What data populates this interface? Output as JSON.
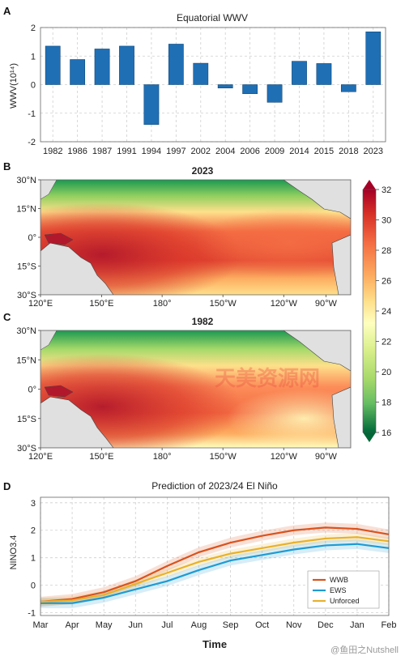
{
  "panels": {
    "a": {
      "letter": "A",
      "title": "Equatorial WWV",
      "ylabel": "WWV(10¹⁴)"
    },
    "b": {
      "letter": "B",
      "title": "2023"
    },
    "c": {
      "letter": "C",
      "title": "1982"
    },
    "d": {
      "letter": "D",
      "title": "Prediction of 2023/24 El Niño",
      "ylabel": "NINO3.4",
      "xlabel": "Time"
    }
  },
  "map_axes": {
    "lat_ticks": [
      "30°N",
      "15°N",
      "0°",
      "15°S",
      "30°S"
    ],
    "lon_ticks": [
      "120°E",
      "150°E",
      "180°",
      "150°W",
      "120°W",
      "90°W"
    ]
  },
  "colorbar": {
    "ticks": [
      "32",
      "30",
      "28",
      "26",
      "24",
      "22",
      "20",
      "18",
      "16"
    ],
    "colors": [
      "#a50026",
      "#d73027",
      "#f46d43",
      "#fdae61",
      "#fee08b",
      "#ffffbf",
      "#d9ef8b",
      "#a6d96a",
      "#66bd63",
      "#1a9850",
      "#006837"
    ]
  },
  "watermark": {
    "text": "天美资源网",
    "footer": "@鱼田之Nutshell"
  },
  "chart_data": [
    {
      "id": "panel-a",
      "type": "bar",
      "title": "Equatorial WWV",
      "ylabel": "WWV(10¹⁴)",
      "categories": [
        "1982",
        "1986",
        "1987",
        "1991",
        "1994",
        "1997",
        "2002",
        "2004",
        "2006",
        "2009",
        "2014",
        "2015",
        "2018",
        "2023"
      ],
      "values": [
        1.35,
        0.88,
        1.25,
        1.35,
        -1.4,
        1.42,
        0.75,
        -0.12,
        -0.32,
        -0.62,
        0.82,
        0.74,
        -0.25,
        1.85
      ],
      "ylim": [
        -2,
        2
      ],
      "yticks": [
        2,
        1,
        0,
        -1,
        -2
      ],
      "grid": true,
      "bar_color": "#1f6fb5"
    },
    {
      "id": "panel-d",
      "type": "line",
      "title": "Prediction of 2023/24 El Niño",
      "xlabel": "Time",
      "ylabel": "NINO3.4",
      "categories": [
        "Mar",
        "Apr",
        "May",
        "Jun",
        "Jul",
        "Aug",
        "Sep",
        "Oct",
        "Nov",
        "Dec",
        "Jan",
        "Feb"
      ],
      "ylim": [
        -1.1,
        3.2
      ],
      "yticks": [
        3,
        2,
        1,
        0,
        -1
      ],
      "grid": true,
      "legend_position": "bottom-right",
      "series": [
        {
          "name": "WWB",
          "color": "#d9531e",
          "values": [
            -0.6,
            -0.5,
            -0.25,
            0.15,
            0.7,
            1.2,
            1.55,
            1.8,
            2.0,
            2.1,
            2.05,
            1.85
          ],
          "spread": 0.18
        },
        {
          "name": "EWS",
          "color": "#1f9bd1",
          "values": [
            -0.65,
            -0.65,
            -0.45,
            -0.15,
            0.15,
            0.55,
            0.9,
            1.1,
            1.3,
            1.45,
            1.5,
            1.35
          ],
          "spread": 0.18
        },
        {
          "name": "Unforced",
          "color": "#e8b12c",
          "values": [
            -0.6,
            -0.55,
            -0.35,
            0.05,
            0.45,
            0.85,
            1.15,
            1.35,
            1.55,
            1.7,
            1.75,
            1.6
          ],
          "spread": 0.15
        }
      ]
    }
  ]
}
